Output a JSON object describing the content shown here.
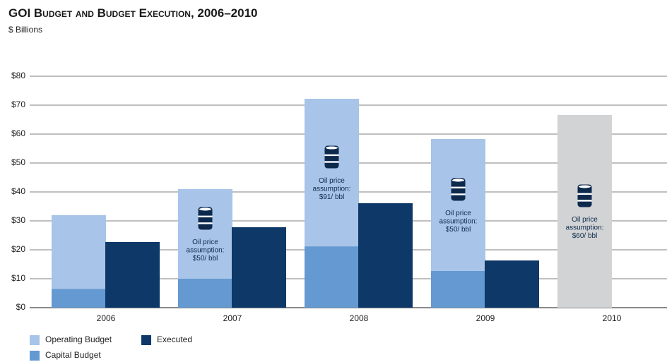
{
  "chart_data": {
    "type": "bar",
    "title": "GOI Budget and Budget Execution, 2006–2010",
    "subtitle": "$ Billions",
    "categories": [
      "2006",
      "2007",
      "2008",
      "2009",
      "2010"
    ],
    "series": [
      {
        "name": "Capital Budget",
        "color": "#6499d2",
        "stack": 0,
        "values": [
          6.5,
          10,
          21.2,
          12.7,
          null
        ]
      },
      {
        "name": "Operating Budget",
        "color": "#a8c4e8",
        "stack": 0,
        "values": [
          25.5,
          31,
          51,
          45.6,
          null
        ]
      },
      {
        "color": "#d1d3d4",
        "stack": 0,
        "values": [
          null,
          null,
          null,
          null,
          66.6
        ]
      },
      {
        "name": "Executed",
        "color": "#0d3868",
        "stack": 1,
        "values": [
          22.7,
          27.8,
          36.1,
          16.3,
          null
        ]
      }
    ],
    "ylim": [
      0,
      80
    ],
    "yticks": [
      {
        "value": 0,
        "label": "$0"
      },
      {
        "value": 10,
        "label": "$10"
      },
      {
        "value": 20,
        "label": "$20"
      },
      {
        "value": 30,
        "label": "$30"
      },
      {
        "value": 40,
        "label": "$40"
      },
      {
        "value": 50,
        "label": "$50"
      },
      {
        "value": 60,
        "label": "$60"
      },
      {
        "value": 70,
        "label": "$70"
      },
      {
        "value": 80,
        "label": "$80"
      }
    ],
    "grid": true,
    "annotations": [
      {
        "category": "2007",
        "lines": [
          "Oil price",
          "assumption:",
          "$50/ bbl"
        ]
      },
      {
        "category": "2008",
        "lines": [
          "Oil price",
          "assumption:",
          "$91/ bbl"
        ]
      },
      {
        "category": "2009",
        "lines": [
          "Oil price",
          "assumption:",
          "$50/ bbl"
        ]
      },
      {
        "category": "2010",
        "lines": [
          "Oil price",
          "assumption:",
          "$60/ bbl"
        ]
      }
    ]
  }
}
